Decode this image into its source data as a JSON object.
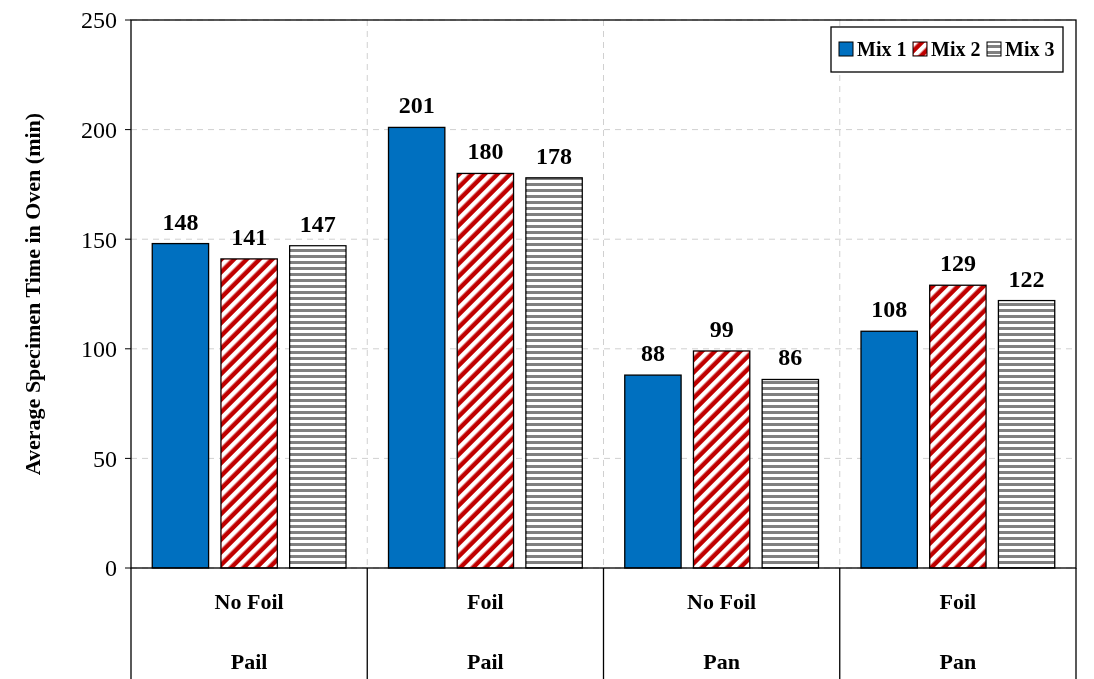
{
  "chart_data": {
    "type": "bar",
    "ylabel": "Average Specimen Time in Oven (min)",
    "categories": [
      "No Foil\nPail",
      "Foil\nPail",
      "No Foil\nPan",
      "Foil\nPan"
    ],
    "series": [
      {
        "name": "Mix 1",
        "color": "#0070c0",
        "values": [
          148,
          201,
          88,
          108
        ]
      },
      {
        "name": "Mix 2",
        "color": "#c00000",
        "values": [
          141,
          180,
          99,
          129
        ]
      },
      {
        "name": "Mix 3",
        "color": "#808080",
        "values": [
          147,
          178,
          86,
          122
        ]
      }
    ],
    "ylim": [
      0,
      250
    ],
    "yticks": [
      0,
      50,
      100,
      150,
      200,
      250
    ],
    "grid": true,
    "legend": "top right",
    "data_labels": true
  }
}
